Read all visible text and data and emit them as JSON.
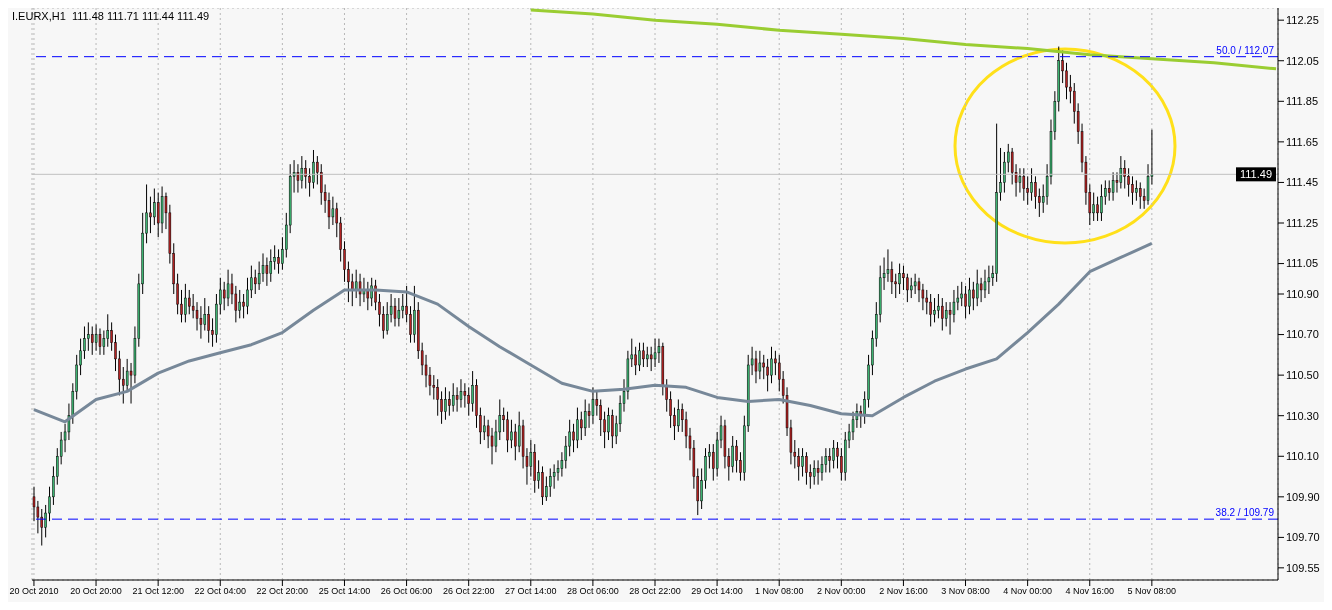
{
  "chart_data": {
    "type": "candlestick",
    "title": "I.EURX,H1  111.48 111.71 111.44 111.49",
    "categories": [
      "20 Oct 2010",
      null,
      null,
      null,
      null,
      null,
      null,
      null,
      null,
      null,
      null,
      null,
      null,
      null,
      null,
      null,
      "20 Oct 20:00",
      null,
      null,
      null,
      null,
      null,
      null,
      null,
      null,
      null,
      null,
      null,
      null,
      null,
      null,
      null,
      "21 Oct 12:00",
      null,
      null,
      null,
      null,
      null,
      null,
      null,
      null,
      null,
      null,
      null,
      null,
      null,
      null,
      null,
      "22 Oct 04:00",
      null,
      null,
      null,
      null,
      null,
      null,
      null,
      null,
      null,
      null,
      null,
      null,
      null,
      null,
      null,
      "22 Oct 20:00",
      null,
      null,
      null,
      null,
      null,
      null,
      null,
      null,
      null,
      null,
      null,
      null,
      null,
      null,
      null,
      "25 Oct 14:00",
      null,
      null,
      null,
      null,
      null,
      null,
      null,
      null,
      null,
      null,
      null,
      null,
      null,
      null,
      null,
      "26 Oct 06:00",
      null,
      null,
      null,
      null,
      null,
      null,
      null,
      null,
      null,
      null,
      null,
      null,
      null,
      null,
      null,
      "26 Oct 22:00",
      null,
      null,
      null,
      null,
      null,
      null,
      null,
      null,
      null,
      null,
      null,
      null,
      null,
      null,
      null,
      "27 Oct 14:00",
      null,
      null,
      null,
      null,
      null,
      null,
      null,
      null,
      null,
      null,
      null,
      null,
      null,
      null,
      null,
      "28 Oct 06:00",
      null,
      null,
      null,
      null,
      null,
      null,
      null,
      null,
      null,
      null,
      null,
      null,
      null,
      null,
      null,
      "28 Oct 22:00",
      null,
      null,
      null,
      null,
      null,
      null,
      null,
      null,
      null,
      null,
      null,
      null,
      null,
      null,
      null,
      "29 Oct 14:00",
      null,
      null,
      null,
      null,
      null,
      null,
      null,
      null,
      null,
      null,
      null,
      null,
      null,
      null,
      null,
      "1 Nov 08:00",
      null,
      null,
      null,
      null,
      null,
      null,
      null,
      null,
      null,
      null,
      null,
      null,
      null,
      null,
      null,
      "2 Nov 00:00",
      null,
      null,
      null,
      null,
      null,
      null,
      null,
      null,
      null,
      null,
      null,
      null,
      null,
      null,
      null,
      "2 Nov 16:00",
      null,
      null,
      null,
      null,
      null,
      null,
      null,
      null,
      null,
      null,
      null,
      null,
      null,
      null,
      null,
      "3 Nov 08:00",
      null,
      null,
      null,
      null,
      null,
      null,
      null,
      null,
      null,
      null,
      null,
      null,
      null,
      null,
      null,
      "4 Nov 00:00",
      null,
      null,
      null,
      null,
      null,
      null,
      null,
      null,
      null,
      null,
      null,
      null,
      null,
      null,
      null,
      "4 Nov 16:00",
      null,
      null,
      null,
      null,
      null,
      null,
      null,
      null,
      null,
      null,
      null,
      null,
      null,
      null,
      null,
      "5 Nov 08:00",
      null,
      null,
      null,
      null,
      null,
      null,
      null,
      null,
      null,
      null,
      null,
      null,
      null,
      null,
      null,
      null,
      null,
      null,
      null,
      null,
      null,
      null,
      null,
      null,
      null,
      null,
      null,
      null,
      null,
      null,
      null,
      null
    ],
    "ohlc": [
      [
        109.9,
        109.95,
        109.78,
        109.85
      ],
      [
        109.85,
        109.88,
        109.72,
        109.8
      ],
      [
        109.8,
        109.84,
        109.66,
        109.75
      ],
      [
        109.75,
        109.86,
        109.7,
        109.82
      ],
      [
        109.82,
        109.95,
        109.78,
        109.9
      ],
      [
        109.9,
        110.05,
        109.86,
        110.0
      ],
      [
        110.0,
        110.14,
        109.96,
        110.1
      ],
      [
        110.1,
        110.22,
        110.06,
        110.18
      ],
      [
        110.18,
        110.26,
        110.12,
        110.22
      ],
      [
        110.22,
        110.36,
        110.18,
        110.3
      ],
      [
        110.3,
        110.46,
        110.26,
        110.42
      ],
      [
        110.42,
        110.6,
        110.38,
        110.55
      ],
      [
        110.55,
        110.68,
        110.5,
        110.62
      ],
      [
        110.62,
        110.74,
        110.58,
        110.68
      ],
      [
        110.68,
        110.76,
        110.62,
        110.7
      ],
      [
        110.7,
        110.74,
        110.6,
        110.66
      ],
      [
        110.66,
        110.75,
        110.62,
        110.7
      ],
      [
        110.7,
        110.73,
        110.6,
        110.64
      ],
      [
        110.64,
        110.72,
        110.6,
        110.68
      ],
      [
        110.68,
        110.8,
        110.64,
        110.72
      ],
      [
        110.72,
        110.76,
        110.62,
        110.66
      ],
      [
        110.66,
        110.7,
        110.52,
        110.58
      ],
      [
        110.58,
        110.62,
        110.4,
        110.48
      ],
      [
        110.48,
        110.54,
        110.36,
        110.45
      ],
      [
        110.45,
        110.58,
        110.42,
        110.52
      ],
      [
        110.52,
        110.56,
        110.36,
        110.5
      ],
      [
        110.5,
        110.74,
        110.46,
        110.68
      ],
      [
        110.68,
        111.0,
        110.64,
        110.95
      ],
      [
        110.95,
        111.3,
        110.9,
        111.2
      ],
      [
        111.2,
        111.44,
        111.15,
        111.3
      ],
      [
        111.3,
        111.38,
        111.2,
        111.28
      ],
      [
        111.28,
        111.42,
        111.24,
        111.35
      ],
      [
        111.35,
        111.4,
        111.18,
        111.25
      ],
      [
        111.25,
        111.43,
        111.2,
        111.38
      ],
      [
        111.38,
        111.4,
        111.22,
        111.3
      ],
      [
        111.3,
        111.34,
        111.05,
        111.1
      ],
      [
        111.1,
        111.15,
        110.9,
        110.95
      ],
      [
        110.95,
        111.0,
        110.8,
        110.85
      ],
      [
        110.85,
        110.92,
        110.76,
        110.8
      ],
      [
        110.8,
        110.95,
        110.76,
        110.88
      ],
      [
        110.88,
        110.92,
        110.8,
        110.84
      ],
      [
        110.84,
        110.9,
        110.78,
        110.82
      ],
      [
        110.82,
        110.86,
        110.72,
        110.78
      ],
      [
        110.78,
        110.84,
        110.68,
        110.75
      ],
      [
        110.75,
        110.88,
        110.72,
        110.8
      ],
      [
        110.8,
        110.84,
        110.66,
        110.72
      ],
      [
        110.72,
        110.78,
        110.64,
        110.7
      ],
      [
        110.7,
        110.9,
        110.66,
        110.85
      ],
      [
        110.85,
        110.98,
        110.8,
        110.92
      ],
      [
        110.92,
        110.96,
        110.82,
        110.88
      ],
      [
        110.88,
        111.02,
        110.84,
        110.95
      ],
      [
        110.95,
        111.0,
        110.85,
        110.9
      ],
      [
        110.9,
        110.94,
        110.76,
        110.82
      ],
      [
        110.82,
        110.92,
        110.78,
        110.86
      ],
      [
        110.86,
        110.9,
        110.78,
        110.84
      ],
      [
        110.84,
        110.98,
        110.8,
        110.92
      ],
      [
        110.92,
        111.04,
        110.88,
        110.98
      ],
      [
        110.98,
        111.02,
        110.9,
        110.95
      ],
      [
        110.95,
        111.06,
        110.92,
        111.0
      ],
      [
        111.0,
        111.1,
        110.96,
        111.04
      ],
      [
        111.04,
        111.08,
        110.94,
        111.0
      ],
      [
        111.0,
        111.12,
        110.96,
        111.06
      ],
      [
        111.06,
        111.14,
        111.02,
        111.08
      ],
      [
        111.08,
        111.12,
        111.0,
        111.05
      ],
      [
        111.05,
        111.18,
        111.02,
        111.12
      ],
      [
        111.12,
        111.3,
        111.08,
        111.24
      ],
      [
        111.24,
        111.54,
        111.2,
        111.48
      ],
      [
        111.48,
        111.56,
        111.4,
        111.5
      ],
      [
        111.5,
        111.54,
        111.4,
        111.46
      ],
      [
        111.46,
        111.58,
        111.42,
        111.52
      ],
      [
        111.52,
        111.56,
        111.42,
        111.48
      ],
      [
        111.48,
        111.52,
        111.38,
        111.45
      ],
      [
        111.45,
        111.61,
        111.42,
        111.55
      ],
      [
        111.55,
        111.58,
        111.44,
        111.5
      ],
      [
        111.5,
        111.54,
        111.34,
        111.4
      ],
      [
        111.4,
        111.44,
        111.3,
        111.36
      ],
      [
        111.36,
        111.4,
        111.22,
        111.28
      ],
      [
        111.28,
        111.38,
        111.24,
        111.32
      ],
      [
        111.32,
        111.35,
        111.18,
        111.25
      ],
      [
        111.25,
        111.28,
        111.06,
        111.12
      ],
      [
        111.12,
        111.16,
        110.96,
        111.02
      ],
      [
        111.02,
        111.06,
        110.86,
        110.96
      ],
      [
        110.96,
        111.0,
        110.84,
        110.92
      ],
      [
        110.92,
        111.02,
        110.88,
        110.96
      ],
      [
        110.96,
        111.0,
        110.84,
        110.9
      ],
      [
        110.9,
        110.98,
        110.86,
        110.92
      ],
      [
        110.92,
        110.96,
        110.82,
        110.88
      ],
      [
        110.88,
        110.98,
        110.84,
        110.94
      ],
      [
        110.94,
        110.97,
        110.82,
        110.86
      ],
      [
        110.86,
        110.9,
        110.74,
        110.8
      ],
      [
        110.8,
        110.84,
        110.68,
        110.72
      ],
      [
        110.72,
        110.86,
        110.7,
        110.8
      ],
      [
        110.8,
        110.9,
        110.76,
        110.84
      ],
      [
        110.84,
        110.88,
        110.74,
        110.78
      ],
      [
        110.78,
        110.88,
        110.74,
        110.82
      ],
      [
        110.82,
        110.9,
        110.78,
        110.84
      ],
      [
        110.84,
        110.94,
        110.76,
        110.8
      ],
      [
        110.8,
        110.84,
        110.66,
        110.7
      ],
      [
        110.7,
        110.94,
        110.66,
        110.82
      ],
      [
        110.82,
        110.86,
        110.58,
        110.62
      ],
      [
        110.62,
        110.66,
        110.5,
        110.55
      ],
      [
        110.55,
        110.6,
        110.44,
        110.5
      ],
      [
        110.5,
        110.54,
        110.4,
        110.45
      ],
      [
        110.45,
        110.5,
        110.38,
        110.44
      ],
      [
        110.44,
        110.48,
        110.3,
        110.38
      ],
      [
        110.38,
        110.42,
        110.26,
        110.32
      ],
      [
        110.32,
        110.44,
        110.28,
        110.38
      ],
      [
        110.38,
        110.42,
        110.3,
        110.35
      ],
      [
        110.35,
        110.46,
        110.32,
        110.4
      ],
      [
        110.4,
        110.44,
        110.32,
        110.38
      ],
      [
        110.38,
        110.48,
        110.34,
        110.42
      ],
      [
        110.42,
        110.46,
        110.34,
        110.4
      ],
      [
        110.4,
        110.44,
        110.3,
        110.36
      ],
      [
        110.36,
        110.52,
        110.32,
        110.45
      ],
      [
        110.45,
        110.48,
        110.24,
        110.3
      ],
      [
        110.3,
        110.34,
        110.16,
        110.22
      ],
      [
        110.22,
        110.3,
        110.18,
        110.25
      ],
      [
        110.25,
        110.28,
        110.14,
        110.2
      ],
      [
        110.2,
        110.24,
        110.06,
        110.15
      ],
      [
        110.15,
        110.28,
        110.12,
        110.22
      ],
      [
        110.22,
        110.38,
        110.18,
        110.3
      ],
      [
        110.3,
        110.34,
        110.22,
        110.28
      ],
      [
        110.28,
        110.32,
        110.12,
        110.18
      ],
      [
        110.18,
        110.28,
        110.14,
        110.22
      ],
      [
        110.22,
        110.26,
        110.08,
        110.15
      ],
      [
        110.15,
        110.32,
        110.12,
        110.25
      ],
      [
        110.25,
        110.28,
        110.04,
        110.1
      ],
      [
        110.1,
        110.14,
        109.96,
        110.05
      ],
      [
        110.05,
        110.18,
        110.0,
        110.12
      ],
      [
        110.12,
        110.16,
        109.92,
        109.98
      ],
      [
        109.98,
        110.08,
        109.94,
        110.02
      ],
      [
        110.02,
        110.05,
        109.86,
        109.9
      ],
      [
        109.9,
        110.0,
        109.88,
        109.95
      ],
      [
        109.95,
        110.04,
        109.9,
        110.0
      ],
      [
        110.0,
        110.06,
        109.94,
        110.02
      ],
      [
        110.02,
        110.08,
        109.98,
        110.04
      ],
      [
        110.04,
        110.12,
        110.0,
        110.08
      ],
      [
        110.08,
        110.2,
        110.04,
        110.15
      ],
      [
        110.15,
        110.28,
        110.1,
        110.22
      ],
      [
        110.22,
        110.26,
        110.12,
        110.18
      ],
      [
        110.18,
        110.34,
        110.14,
        110.28
      ],
      [
        110.28,
        110.32,
        110.18,
        110.24
      ],
      [
        110.24,
        110.38,
        110.2,
        110.32
      ],
      [
        110.32,
        110.36,
        110.24,
        110.3
      ],
      [
        110.3,
        110.44,
        110.26,
        110.38
      ],
      [
        110.38,
        110.42,
        110.3,
        110.35
      ],
      [
        110.35,
        110.38,
        110.2,
        110.28
      ],
      [
        110.28,
        110.32,
        110.14,
        110.22
      ],
      [
        110.22,
        110.34,
        110.18,
        110.3
      ],
      [
        110.3,
        110.33,
        110.14,
        110.2
      ],
      [
        110.2,
        110.3,
        110.16,
        110.26
      ],
      [
        110.26,
        110.4,
        110.22,
        110.36
      ],
      [
        110.36,
        110.48,
        110.32,
        110.42
      ],
      [
        110.42,
        110.62,
        110.38,
        110.58
      ],
      [
        110.58,
        110.68,
        110.54,
        110.6
      ],
      [
        110.6,
        110.64,
        110.5,
        110.55
      ],
      [
        110.55,
        110.66,
        110.52,
        110.62
      ],
      [
        110.62,
        110.66,
        110.54,
        110.58
      ],
      [
        110.58,
        110.64,
        110.54,
        110.6
      ],
      [
        110.6,
        110.64,
        110.52,
        110.58
      ],
      [
        110.58,
        110.68,
        110.54,
        110.61
      ],
      [
        110.61,
        110.68,
        110.56,
        110.64
      ],
      [
        110.64,
        110.66,
        110.4,
        110.45
      ],
      [
        110.45,
        110.48,
        110.32,
        110.38
      ],
      [
        110.38,
        110.42,
        110.24,
        110.3
      ],
      [
        110.3,
        110.34,
        110.18,
        110.25
      ],
      [
        110.25,
        110.38,
        110.22,
        110.33
      ],
      [
        110.33,
        110.36,
        110.22,
        110.28
      ],
      [
        110.28,
        110.32,
        110.14,
        110.2
      ],
      [
        110.2,
        110.24,
        110.08,
        110.14
      ],
      [
        110.14,
        110.18,
        109.94,
        110.0
      ],
      [
        110.0,
        110.04,
        109.81,
        109.88
      ],
      [
        109.88,
        110.04,
        109.84,
        109.98
      ],
      [
        109.98,
        110.14,
        109.94,
        110.1
      ],
      [
        110.1,
        110.16,
        110.04,
        110.12
      ],
      [
        110.12,
        110.16,
        109.98,
        110.04
      ],
      [
        110.04,
        110.22,
        110.0,
        110.18
      ],
      [
        110.18,
        110.3,
        110.14,
        110.25
      ],
      [
        110.25,
        110.28,
        110.04,
        110.1
      ],
      [
        110.1,
        110.14,
        109.98,
        110.05
      ],
      [
        110.05,
        110.2,
        110.02,
        110.15
      ],
      [
        110.15,
        110.18,
        110.02,
        110.08
      ],
      [
        110.08,
        110.12,
        109.98,
        110.02
      ],
      [
        110.02,
        110.3,
        109.98,
        110.25
      ],
      [
        110.25,
        110.6,
        110.22,
        110.55
      ],
      [
        110.55,
        110.64,
        110.5,
        110.58
      ],
      [
        110.58,
        110.62,
        110.46,
        110.52
      ],
      [
        110.52,
        110.62,
        110.48,
        110.56
      ],
      [
        110.56,
        110.6,
        110.48,
        110.54
      ],
      [
        110.54,
        110.58,
        110.42,
        110.5
      ],
      [
        110.5,
        110.64,
        110.46,
        110.58
      ],
      [
        110.58,
        110.62,
        110.5,
        110.56
      ],
      [
        110.56,
        110.6,
        110.42,
        110.48
      ],
      [
        110.48,
        110.52,
        110.36,
        110.4
      ],
      [
        110.4,
        110.44,
        110.2,
        110.24
      ],
      [
        110.24,
        110.28,
        110.06,
        110.12
      ],
      [
        110.12,
        110.18,
        110.04,
        110.1
      ],
      [
        110.1,
        110.14,
        109.98,
        110.05
      ],
      [
        110.05,
        110.14,
        110.0,
        110.1
      ],
      [
        110.1,
        110.12,
        109.96,
        110.02
      ],
      [
        110.02,
        110.06,
        109.94,
        110.0
      ],
      [
        110.0,
        110.08,
        109.96,
        110.04
      ],
      [
        110.04,
        110.08,
        109.96,
        110.02
      ],
      [
        110.02,
        110.1,
        109.98,
        110.06
      ],
      [
        110.06,
        110.14,
        110.02,
        110.1
      ],
      [
        110.1,
        110.14,
        110.02,
        110.08
      ],
      [
        110.08,
        110.18,
        110.04,
        110.14
      ],
      [
        110.14,
        110.17,
        110.04,
        110.1
      ],
      [
        110.1,
        110.14,
        109.98,
        110.02
      ],
      [
        110.02,
        110.22,
        109.98,
        110.18
      ],
      [
        110.18,
        110.26,
        110.14,
        110.22
      ],
      [
        110.22,
        110.32,
        110.18,
        110.28
      ],
      [
        110.28,
        110.36,
        110.24,
        110.32
      ],
      [
        110.32,
        110.35,
        110.24,
        110.3
      ],
      [
        110.3,
        110.42,
        110.26,
        110.38
      ],
      [
        110.38,
        110.6,
        110.34,
        110.55
      ],
      [
        110.55,
        110.72,
        110.5,
        110.68
      ],
      [
        110.68,
        110.86,
        110.64,
        110.8
      ],
      [
        110.8,
        111.04,
        110.76,
        110.98
      ],
      [
        110.98,
        111.08,
        110.92,
        111.0
      ],
      [
        111.0,
        111.12,
        110.96,
        111.02
      ],
      [
        111.02,
        111.06,
        110.9,
        110.96
      ],
      [
        110.96,
        111.0,
        110.88,
        110.95
      ],
      [
        110.95,
        111.05,
        110.9,
        111.0
      ],
      [
        111.0,
        111.04,
        110.92,
        110.98
      ],
      [
        110.98,
        111.0,
        110.86,
        110.92
      ],
      [
        110.92,
        110.98,
        110.88,
        110.94
      ],
      [
        110.94,
        111.0,
        110.9,
        110.96
      ],
      [
        110.96,
        110.98,
        110.86,
        110.92
      ],
      [
        110.92,
        110.95,
        110.82,
        110.88
      ],
      [
        110.88,
        110.92,
        110.8,
        110.86
      ],
      [
        110.86,
        110.9,
        110.74,
        110.8
      ],
      [
        110.8,
        110.88,
        110.76,
        110.82
      ],
      [
        110.82,
        110.9,
        110.78,
        110.84
      ],
      [
        110.84,
        110.88,
        110.72,
        110.78
      ],
      [
        110.78,
        110.86,
        110.74,
        110.82
      ],
      [
        110.82,
        110.86,
        110.7,
        110.8
      ],
      [
        110.8,
        110.92,
        110.76,
        110.86
      ],
      [
        110.86,
        110.94,
        110.82,
        110.88
      ],
      [
        110.88,
        110.96,
        110.84,
        110.9
      ],
      [
        110.9,
        110.94,
        110.78,
        110.84
      ],
      [
        110.84,
        110.98,
        110.8,
        110.92
      ],
      [
        110.92,
        110.96,
        110.82,
        110.88
      ],
      [
        110.88,
        111.02,
        110.84,
        110.95
      ],
      [
        110.95,
        110.98,
        110.86,
        110.92
      ],
      [
        110.92,
        111.02,
        110.88,
        110.96
      ],
      [
        110.96,
        111.04,
        110.9,
        110.98
      ],
      [
        110.98,
        111.04,
        110.94,
        111.0
      ],
      [
        111.0,
        111.74,
        110.96,
        111.4
      ],
      [
        111.4,
        111.62,
        111.36,
        111.45
      ],
      [
        111.45,
        111.6,
        111.4,
        111.55
      ],
      [
        111.55,
        111.64,
        111.5,
        111.6
      ],
      [
        111.6,
        111.62,
        111.44,
        111.5
      ],
      [
        111.5,
        111.54,
        111.38,
        111.45
      ],
      [
        111.45,
        111.52,
        111.4,
        111.48
      ],
      [
        111.48,
        111.52,
        111.36,
        111.42
      ],
      [
        111.42,
        111.48,
        111.34,
        111.4
      ],
      [
        111.4,
        111.52,
        111.36,
        111.45
      ],
      [
        111.45,
        111.48,
        111.32,
        111.38
      ],
      [
        111.38,
        111.42,
        111.28,
        111.35
      ],
      [
        111.35,
        111.44,
        111.3,
        111.38
      ],
      [
        111.38,
        111.54,
        111.34,
        111.48
      ],
      [
        111.48,
        111.76,
        111.44,
        111.7
      ],
      [
        111.7,
        111.9,
        111.66,
        111.85
      ],
      [
        111.85,
        112.12,
        111.8,
        112.05
      ],
      [
        112.05,
        112.1,
        111.94,
        112.0
      ],
      [
        112.0,
        112.04,
        111.86,
        111.92
      ],
      [
        111.92,
        111.98,
        111.84,
        111.9
      ],
      [
        111.9,
        111.94,
        111.74,
        111.8
      ],
      [
        111.8,
        111.84,
        111.64,
        111.7
      ],
      [
        111.7,
        111.74,
        111.5,
        111.55
      ],
      [
        111.55,
        111.58,
        111.34,
        111.4
      ],
      [
        111.4,
        111.44,
        111.24,
        111.3
      ],
      [
        111.3,
        111.4,
        111.26,
        111.34
      ],
      [
        111.34,
        111.38,
        111.26,
        111.3
      ],
      [
        111.3,
        111.44,
        111.26,
        111.38
      ],
      [
        111.38,
        111.46,
        111.34,
        111.42
      ],
      [
        111.42,
        111.46,
        111.36,
        111.4
      ],
      [
        111.4,
        111.5,
        111.36,
        111.46
      ],
      [
        111.46,
        111.5,
        111.4,
        111.45
      ],
      [
        111.45,
        111.58,
        111.42,
        111.52
      ],
      [
        111.52,
        111.56,
        111.42,
        111.48
      ],
      [
        111.48,
        111.52,
        111.38,
        111.44
      ],
      [
        111.44,
        111.48,
        111.34,
        111.4
      ],
      [
        111.4,
        111.46,
        111.36,
        111.42
      ],
      [
        111.42,
        111.45,
        111.32,
        111.38
      ],
      [
        111.38,
        111.42,
        111.32,
        111.36
      ],
      [
        111.36,
        111.54,
        111.34,
        111.48
      ],
      [
        111.48,
        111.71,
        111.44,
        111.49
      ],
      null,
      null,
      null,
      null,
      null,
      null,
      null,
      null,
      null,
      null,
      null,
      null,
      null,
      null,
      null,
      null,
      null,
      null,
      null,
      null,
      null,
      null,
      null,
      null,
      null,
      null,
      null,
      null,
      null,
      null,
      null,
      null
    ],
    "series": [
      {
        "type": "line",
        "color": "#778899",
        "values": [
          110.33,
          null,
          null,
          null,
          null,
          null,
          null,
          null,
          110.27,
          null,
          null,
          null,
          null,
          null,
          null,
          null,
          110.38,
          null,
          null,
          null,
          null,
          null,
          null,
          null,
          110.42,
          null,
          null,
          null,
          null,
          null,
          null,
          null,
          110.51,
          null,
          null,
          null,
          null,
          null,
          null,
          null,
          110.57,
          null,
          null,
          null,
          null,
          null,
          null,
          null,
          110.61,
          null,
          null,
          null,
          null,
          null,
          null,
          null,
          110.65,
          null,
          null,
          null,
          null,
          null,
          null,
          null,
          110.71,
          null,
          null,
          null,
          null,
          null,
          null,
          null,
          110.82,
          null,
          null,
          null,
          null,
          null,
          null,
          null,
          110.92,
          null,
          null,
          null,
          null,
          null,
          null,
          null,
          110.92,
          null,
          null,
          null,
          null,
          null,
          null,
          null,
          110.91,
          null,
          null,
          null,
          null,
          null,
          null,
          null,
          110.85,
          null,
          null,
          null,
          null,
          null,
          null,
          null,
          110.74,
          null,
          null,
          null,
          null,
          null,
          null,
          null,
          110.64,
          null,
          null,
          null,
          null,
          null,
          null,
          null,
          110.55,
          null,
          null,
          null,
          null,
          null,
          null,
          null,
          110.46,
          null,
          null,
          null,
          null,
          null,
          null,
          null,
          110.42,
          null,
          null,
          null,
          null,
          null,
          null,
          null,
          110.43,
          null,
          null,
          null,
          null,
          null,
          null,
          null,
          110.45,
          null,
          null,
          null,
          null,
          null,
          null,
          null,
          110.44,
          null,
          null,
          null,
          null,
          null,
          null,
          null,
          110.39,
          null,
          null,
          null,
          null,
          null,
          null,
          null,
          110.37,
          null,
          null,
          null,
          null,
          null,
          null,
          null,
          110.38,
          null,
          null,
          null,
          null,
          null,
          null,
          null,
          110.35,
          null,
          null,
          null,
          null,
          null,
          null,
          null,
          110.31,
          null,
          null,
          null,
          null,
          null,
          null,
          null,
          110.3,
          null,
          null,
          null,
          null,
          null,
          null,
          null,
          110.39,
          null,
          null,
          null,
          null,
          null,
          null,
          null,
          110.47,
          null,
          null,
          null,
          null,
          null,
          null,
          null,
          110.53,
          null,
          null,
          null,
          null,
          null,
          null,
          null,
          110.58,
          null,
          null,
          null,
          null,
          null,
          null,
          null,
          110.71,
          null,
          null,
          null,
          null,
          null,
          null,
          null,
          110.85,
          null,
          null,
          null,
          null,
          null,
          null,
          null,
          111.01,
          null,
          null,
          null,
          null,
          null,
          null,
          null,
          111.08,
          null,
          null,
          null,
          null,
          null,
          null,
          null,
          111.15,
          null,
          null,
          null,
          null,
          null,
          null,
          null,
          null,
          null,
          null,
          null,
          null,
          null,
          null,
          null,
          null,
          null,
          null,
          null,
          null,
          null,
          null,
          null,
          null,
          null,
          null,
          null,
          null,
          null,
          null,
          null,
          null
        ]
      },
      {
        "type": "line",
        "color": "#9acd32",
        "values": [
          null,
          null,
          null,
          null,
          null,
          null,
          null,
          null,
          null,
          null,
          null,
          null,
          null,
          null,
          null,
          null,
          null,
          null,
          null,
          null,
          null,
          null,
          null,
          null,
          null,
          null,
          null,
          null,
          null,
          null,
          null,
          null,
          null,
          null,
          null,
          null,
          null,
          null,
          null,
          null,
          null,
          null,
          null,
          null,
          null,
          null,
          null,
          null,
          null,
          null,
          null,
          null,
          null,
          null,
          null,
          null,
          null,
          null,
          null,
          null,
          null,
          null,
          null,
          null,
          null,
          null,
          null,
          null,
          null,
          null,
          null,
          null,
          null,
          null,
          null,
          null,
          null,
          null,
          null,
          null,
          null,
          null,
          null,
          null,
          null,
          null,
          null,
          null,
          null,
          null,
          null,
          null,
          null,
          null,
          null,
          null,
          null,
          null,
          null,
          null,
          null,
          null,
          null,
          null,
          null,
          null,
          null,
          null,
          null,
          null,
          null,
          null,
          null,
          null,
          null,
          null,
          null,
          null,
          null,
          null,
          null,
          null,
          null,
          null,
          null,
          null,
          null,
          null,
          112.3,
          null,
          null,
          null,
          null,
          null,
          null,
          null,
          null,
          null,
          null,
          null,
          null,
          null,
          null,
          null,
          112.28,
          null,
          null,
          null,
          null,
          null,
          null,
          null,
          null,
          null,
          null,
          null,
          null,
          null,
          null,
          null,
          112.25,
          null,
          null,
          null,
          null,
          null,
          null,
          null,
          null,
          null,
          null,
          null,
          null,
          null,
          null,
          null,
          112.23,
          null,
          null,
          null,
          null,
          null,
          null,
          null,
          null,
          null,
          null,
          null,
          null,
          null,
          null,
          null,
          112.2,
          null,
          null,
          null,
          null,
          null,
          null,
          null,
          null,
          null,
          null,
          null,
          null,
          null,
          null,
          null,
          112.18,
          null,
          null,
          null,
          null,
          null,
          null,
          null,
          null,
          null,
          null,
          null,
          null,
          null,
          null,
          null,
          112.16,
          null,
          null,
          null,
          null,
          null,
          null,
          null,
          null,
          null,
          null,
          null,
          null,
          null,
          null,
          null,
          112.13,
          null,
          null,
          null,
          null,
          null,
          null,
          null,
          null,
          null,
          null,
          null,
          null,
          null,
          null,
          null,
          112.11,
          null,
          null,
          null,
          null,
          null,
          null,
          null,
          null,
          null,
          null,
          null,
          null,
          null,
          null,
          null,
          112.08,
          null,
          null,
          null,
          null,
          null,
          null,
          null,
          null,
          null,
          null,
          null,
          null,
          null,
          null,
          null,
          112.06,
          null,
          null,
          null,
          null,
          null,
          null,
          null,
          null,
          null,
          null,
          null,
          null,
          null,
          null,
          null,
          112.04,
          null,
          null,
          null,
          null,
          null,
          null,
          null,
          null,
          null,
          null,
          null,
          null,
          null,
          null,
          null,
          112.01
        ]
      }
    ],
    "ylim": [
      109.49,
      112.31
    ],
    "yticks": [
      109.55,
      {
        "value": 109.7,
        "label": "109.70"
      },
      {
        "value": 109.9,
        "label": "109.90"
      },
      {
        "value": 110.1,
        "label": "110.10"
      },
      {
        "value": 110.3,
        "label": "110.30"
      },
      {
        "value": 110.5,
        "label": "110.50"
      },
      {
        "value": 110.7,
        "label": "110.70"
      },
      {
        "value": 110.9,
        "label": "110.90"
      },
      111.05,
      111.25,
      111.45,
      111.65,
      111.85,
      112.05,
      112.25
    ],
    "ref_lines": [
      {
        "axis": "y",
        "value": 112.07,
        "label": "50.0 / 112.07",
        "color": "#0000ff",
        "line_style": "dashed"
      },
      {
        "axis": "y",
        "value": 109.79,
        "label": "38.2 / 109.79",
        "color": "#0000ff",
        "line_style": "dashed"
      },
      {
        "axis": "y",
        "value": 111.49,
        "label": "111.49",
        "color": "#c0c0c0",
        "line_style": "solid"
      }
    ],
    "grid": true
  }
}
